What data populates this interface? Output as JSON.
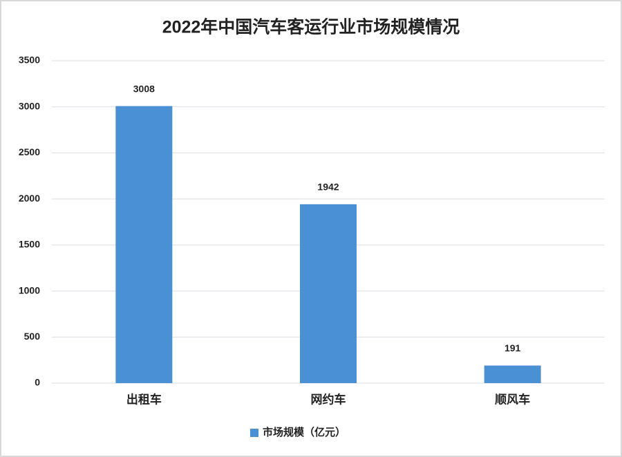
{
  "chart_data": {
    "type": "bar",
    "title": "2022年中国汽车客运行业市场规模情况",
    "categories": [
      "出租车",
      "网约车",
      "顺风车"
    ],
    "series": [
      {
        "name": "市场规模（亿元）",
        "color": "#4a90d4",
        "values": [
          3008,
          1942,
          191
        ]
      }
    ],
    "ylim": [
      0,
      3500
    ],
    "yticks": [
      0,
      500,
      1000,
      1500,
      2000,
      2500,
      3000,
      3500
    ],
    "grid": true,
    "legend": "bottom",
    "data_labels": true
  }
}
